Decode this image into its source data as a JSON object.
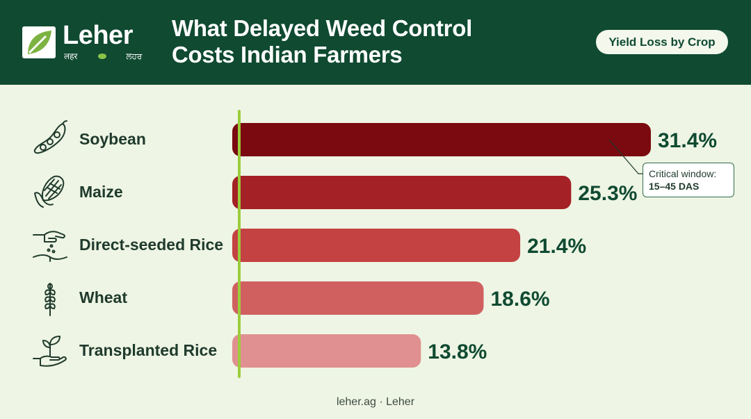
{
  "brand": {
    "name": "Leher",
    "tagline_left": "लहर",
    "tagline_right": "ਲਹਰ"
  },
  "header": {
    "title_line1": "What Delayed Weed Control",
    "title_line2": "Costs Indian Farmers",
    "pill": "Yield Loss by Crop"
  },
  "colors": {
    "header_bg": "#0f4a31",
    "page_bg": "#eef5e4",
    "axis": "#9ccc3d",
    "value_text": "#0f4a31"
  },
  "chart_data": {
    "type": "bar",
    "orientation": "horizontal",
    "categories": [
      "Soybean",
      "Maize",
      "Direct-seeded Rice",
      "Wheat",
      "Transplanted Rice"
    ],
    "values": [
      31.4,
      25.3,
      21.4,
      18.6,
      13.8
    ],
    "value_labels": [
      "31.4%",
      "25.3%",
      "21.4%",
      "18.6%",
      "13.8%"
    ],
    "bar_colors": [
      "#7a0a0f",
      "#a42125",
      "#c44242",
      "#d06060",
      "#e09090"
    ],
    "icons": [
      "soybean-icon",
      "maize-icon",
      "sowing-hand-icon",
      "wheat-icon",
      "seedling-hand-icon"
    ],
    "xlim": [
      0,
      31.4
    ],
    "grid": false,
    "annotation": {
      "target": "Soybean",
      "line1": "Critical window:",
      "line2": "15–45 DAS"
    }
  },
  "footer": "leher.ag · Leher"
}
